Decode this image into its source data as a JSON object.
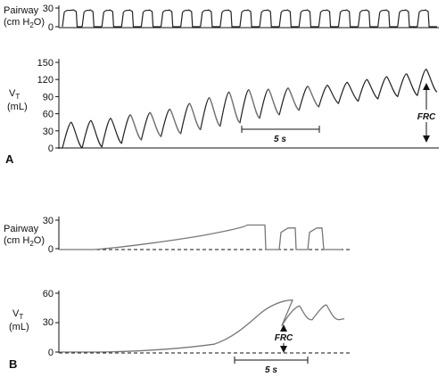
{
  "chart_data": [
    {
      "type": "line",
      "panel": "A",
      "name": "pairway_A",
      "ylabel_main": "Pairway",
      "ylabel_unit_pre": "(cm H",
      "ylabel_unit_sub": "2",
      "ylabel_unit_post": "O)",
      "ylim": [
        0,
        30
      ],
      "yticks": [
        "30",
        "0"
      ],
      "breaths": 19,
      "peak": 27,
      "baseline": 0
    },
    {
      "type": "line",
      "panel": "A",
      "name": "vt_A",
      "ylabel_main": "V",
      "ylabel_sub": "T",
      "ylabel_unit": "(mL)",
      "ylim": [
        0,
        150
      ],
      "yticks": [
        "150",
        "120",
        "90",
        "60",
        "30",
        "0"
      ],
      "peaks": [
        45,
        48,
        52,
        58,
        62,
        68,
        78,
        88,
        98,
        102,
        103,
        105,
        108,
        110,
        115,
        120,
        125,
        130,
        138
      ],
      "troughs": [
        0,
        0,
        2,
        8,
        14,
        20,
        25,
        32,
        38,
        44,
        52,
        58,
        66,
        72,
        78,
        82,
        86,
        90,
        92
      ],
      "annotation_scale": "5 s",
      "annotation_frc": "FRC"
    },
    {
      "type": "line",
      "panel": "B",
      "name": "pairway_B",
      "ylabel_main": "Pairway",
      "ylabel_unit_pre": "(cm H",
      "ylabel_unit_sub": "2",
      "ylabel_unit_post": "O)",
      "ylim": [
        0,
        30
      ],
      "yticks": [
        "30",
        "0"
      ],
      "ramp_start": 0,
      "ramp_end": 25,
      "release_breath_peaks": [
        22,
        22
      ]
    },
    {
      "type": "line",
      "panel": "B",
      "name": "vt_B",
      "ylabel_main": "V",
      "ylabel_sub": "T",
      "ylabel_unit": "(mL)",
      "ylim": [
        0,
        60
      ],
      "yticks": [
        "60",
        "30",
        "0"
      ],
      "max_volume": 53,
      "post_release_trough": 27,
      "post_release_peaks": [
        47,
        48
      ],
      "annotation_scale": "5 s",
      "annotation_frc": "FRC"
    }
  ],
  "panels": {
    "a": "A",
    "b": "B"
  }
}
